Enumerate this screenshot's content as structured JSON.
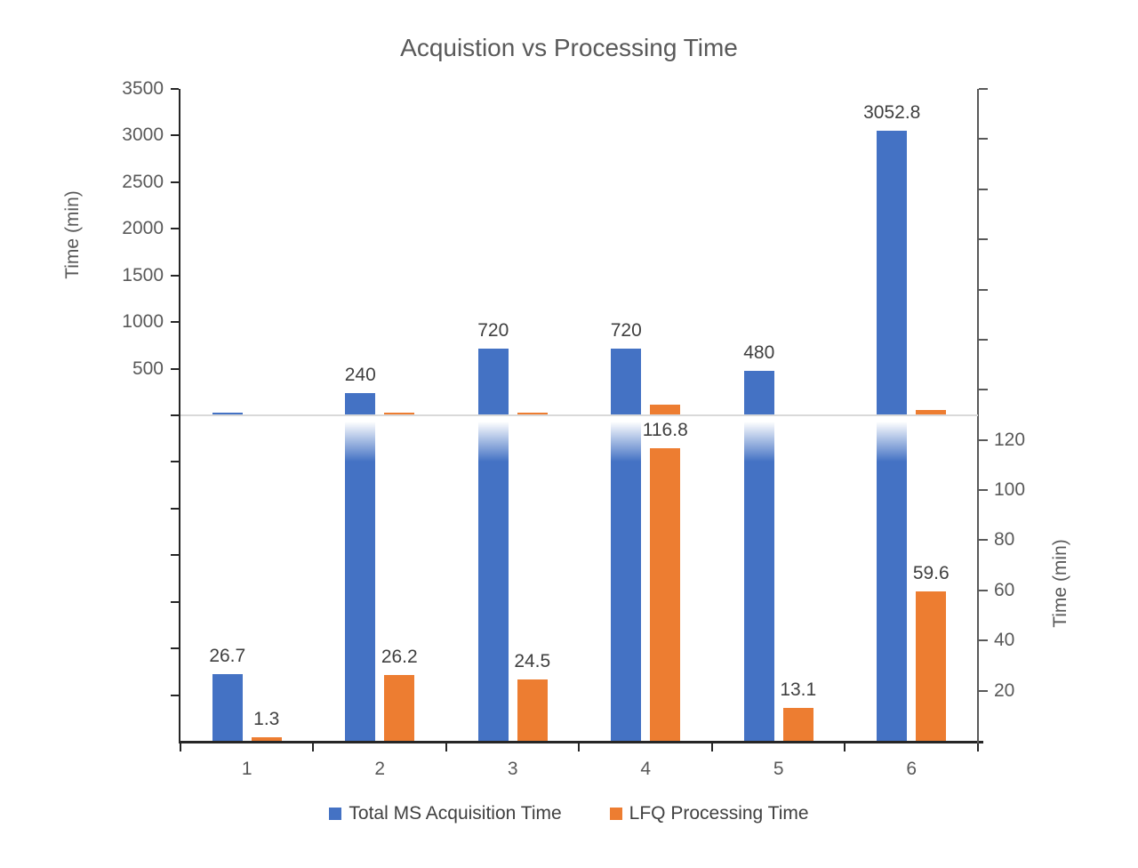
{
  "title": "Acquistion vs Processing Time",
  "legend": {
    "items": [
      {
        "label": "Total MS Acquisition Time",
        "color": "#4472C4"
      },
      {
        "label": "LFQ Processing Time",
        "color": "#ED7D31"
      }
    ]
  },
  "chart_data": {
    "type": "bar",
    "title": "Acquistion vs Processing Time",
    "categories": [
      "1",
      "2",
      "3",
      "4",
      "5",
      "6"
    ],
    "series": [
      {
        "name": "Total MS Acquisition Time",
        "color": "#4472C4",
        "values": [
          26.7,
          240,
          720,
          720,
          480,
          3052.8
        ],
        "axis": "left",
        "label_panel": [
          "bottom",
          "top",
          "top",
          "top",
          "top",
          "top"
        ]
      },
      {
        "name": "LFQ Processing Time",
        "color": "#ED7D31",
        "values": [
          1.3,
          26.2,
          24.5,
          116.8,
          13.1,
          59.6
        ],
        "axis": "right",
        "label_panel": [
          "bottom",
          "bottom",
          "bottom",
          "bottom",
          "bottom",
          "bottom"
        ]
      }
    ],
    "data_labels": {
      "blue": [
        "26.7",
        "240",
        "720",
        "720",
        "480",
        "3052.8"
      ],
      "orange": [
        "1.3",
        "26.2",
        "24.5",
        "116.8",
        "13.1",
        "59.6"
      ]
    },
    "left_axis": {
      "label": "Time (min)",
      "min": 0,
      "max": 3500,
      "tick_step": 500,
      "tick_labels": [
        "3500",
        "3000",
        "2500",
        "2000",
        "1500",
        "1000",
        "500"
      ]
    },
    "right_axis": {
      "label": "Time (min)",
      "min": 0,
      "max": 260,
      "tick_step": 20,
      "tick_labels": [
        "120",
        "100",
        "80",
        "60",
        "40",
        "20"
      ]
    },
    "layout_style": "broken panel chart: top panel on left axis scale, bottom panel on right axis scale, over-limit bars fade to white at gray divider",
    "grid": false,
    "legend_position": "bottom"
  },
  "colors": {
    "axis_dark": "#262626",
    "axis_gray": "#595959",
    "divider": "#d9d9d9",
    "title_text": "#595959",
    "label_text": "#3f3f3f"
  }
}
